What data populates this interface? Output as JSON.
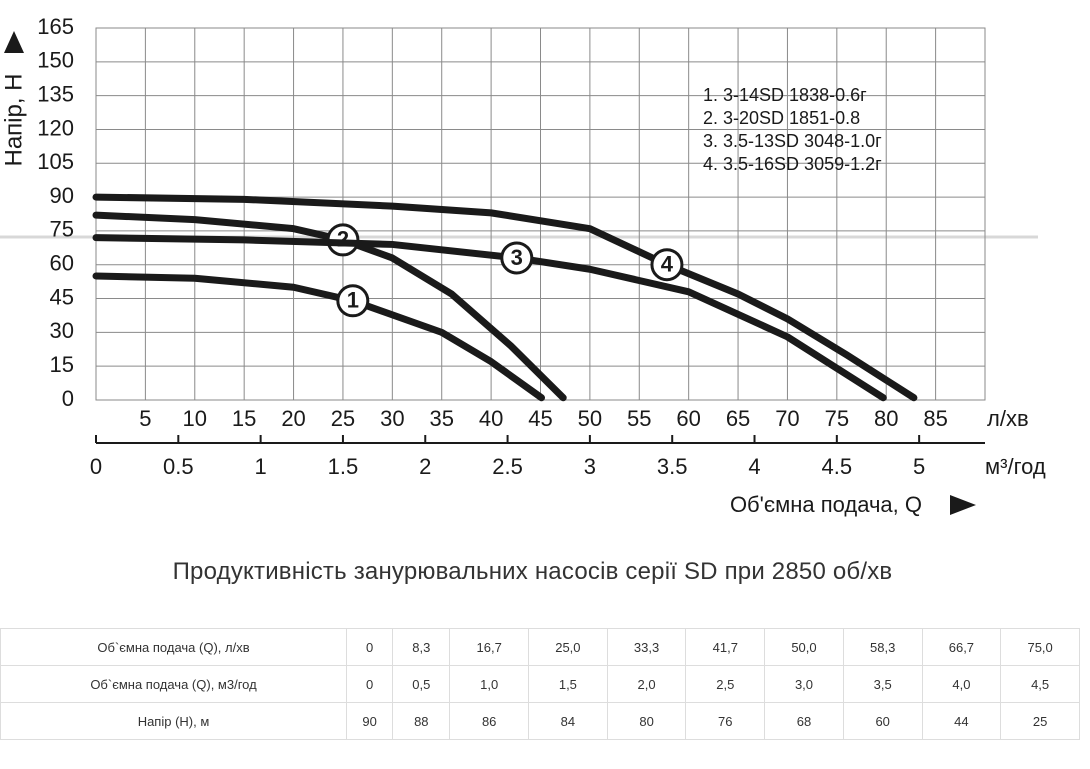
{
  "chart_data": {
    "type": "line",
    "y_label": "Напір, Н",
    "x_label": "Об'ємна подача, Q",
    "x_unit": "л/хв",
    "x2_unit": "м³/год",
    "xlim": [
      0,
      90
    ],
    "xticks": [
      5,
      10,
      15,
      20,
      25,
      30,
      35,
      40,
      45,
      50,
      55,
      60,
      65,
      70,
      75,
      80,
      85
    ],
    "x2lim": [
      0,
      5.4
    ],
    "x2ticks": [
      0,
      0.5,
      1,
      1.5,
      2,
      2.5,
      3,
      3.5,
      4,
      4.5,
      5
    ],
    "ylim": [
      0,
      165
    ],
    "yticks": [
      0,
      15,
      30,
      45,
      60,
      75,
      90,
      105,
      120,
      135,
      150,
      165
    ],
    "grid": true,
    "series": [
      {
        "name": "1. 3-14SD 1838-0.6г",
        "tag": "1",
        "color": "#1a1a1a",
        "x": [
          0,
          10,
          20,
          26,
          35,
          40,
          45.1
        ],
        "values": [
          55,
          54,
          50,
          44,
          30,
          17,
          1
        ]
      },
      {
        "name": "2. 3-20SD 1851-0.8",
        "tag": "2",
        "color": "#1a1a1a",
        "x": [
          0,
          10,
          20,
          25,
          30,
          36,
          42,
          47.3
        ],
        "values": [
          82,
          80,
          76,
          71,
          63,
          47,
          24,
          1
        ]
      },
      {
        "name": "3. 3.5-13SD 3048-1.0г",
        "tag": "3",
        "color": "#1a1a1a",
        "x": [
          0,
          15,
          30,
          42.6,
          50,
          60,
          70,
          79.7
        ],
        "values": [
          72,
          71,
          69,
          63,
          58,
          48,
          28,
          1
        ]
      },
      {
        "name": "4. 3.5-16SD 3059-1.2г",
        "tag": "4",
        "color": "#1a1a1a",
        "x": [
          0,
          15,
          30,
          40,
          50,
          57.8,
          65,
          70,
          76,
          82.8
        ],
        "values": [
          90,
          89,
          86,
          83,
          76,
          60,
          47,
          36,
          20,
          1
        ]
      }
    ]
  },
  "heading": "Продуктивність занурювальних насосів серії SD при 2850 об/хв",
  "table": {
    "rows": [
      [
        "Об`ємна подача (Q), л/хв",
        "0",
        "8,3",
        "16,7",
        "25,0",
        "33,3",
        "41,7",
        "50,0",
        "58,3",
        "66,7",
        "75,0"
      ],
      [
        "Об`ємна подача (Q), м3/год",
        "0",
        "0,5",
        "1,0",
        "1,5",
        "2,0",
        "2,5",
        "3,0",
        "3,5",
        "4,0",
        "4,5"
      ],
      [
        "Напір (Н), м",
        "90",
        "88",
        "86",
        "84",
        "80",
        "76",
        "68",
        "60",
        "44",
        "25"
      ]
    ]
  }
}
